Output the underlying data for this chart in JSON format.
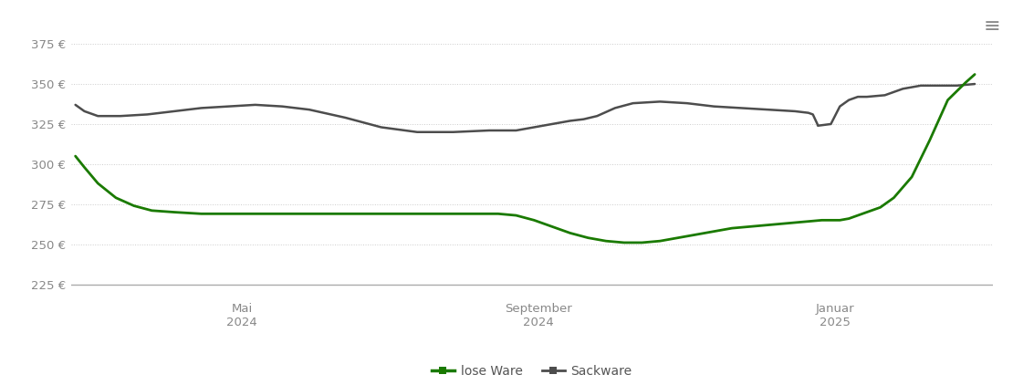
{
  "background_color": "#ffffff",
  "y_ticks": [
    225,
    250,
    275,
    300,
    325,
    350,
    375
  ],
  "y_min": 215,
  "y_max": 388,
  "x_tick_labels": [
    "Mai\n2024",
    "September\n2024",
    "Januar\n2025"
  ],
  "x_tick_positions": [
    0.185,
    0.515,
    0.845
  ],
  "lose_ware_color": "#1a7a00",
  "sackware_color": "#4d4d4d",
  "grid_color": "#cccccc",
  "axis_color": "#aaaaaa",
  "legend_lose_label": "lose Ware",
  "legend_sack_label": "Sackware",
  "lose_ware_x": [
    0.0,
    0.01,
    0.025,
    0.045,
    0.065,
    0.085,
    0.11,
    0.14,
    0.17,
    0.2,
    0.23,
    0.26,
    0.29,
    0.32,
    0.36,
    0.4,
    0.44,
    0.47,
    0.49,
    0.51,
    0.53,
    0.55,
    0.57,
    0.59,
    0.61,
    0.63,
    0.65,
    0.67,
    0.69,
    0.71,
    0.73,
    0.75,
    0.77,
    0.79,
    0.81,
    0.83,
    0.84,
    0.85,
    0.86,
    0.87,
    0.88,
    0.895,
    0.91,
    0.93,
    0.95,
    0.97,
    0.99,
    1.0
  ],
  "lose_ware_y": [
    305,
    298,
    288,
    279,
    274,
    271,
    270,
    269,
    269,
    269,
    269,
    269,
    269,
    269,
    269,
    269,
    269,
    269,
    268,
    265,
    261,
    257,
    254,
    252,
    251,
    251,
    252,
    254,
    256,
    258,
    260,
    261,
    262,
    263,
    264,
    265,
    265,
    265,
    266,
    268,
    270,
    273,
    279,
    292,
    315,
    340,
    351,
    356
  ],
  "sackware_x": [
    0.0,
    0.01,
    0.025,
    0.05,
    0.08,
    0.11,
    0.14,
    0.17,
    0.2,
    0.23,
    0.26,
    0.3,
    0.34,
    0.38,
    0.42,
    0.46,
    0.49,
    0.51,
    0.53,
    0.55,
    0.565,
    0.58,
    0.6,
    0.62,
    0.65,
    0.68,
    0.71,
    0.74,
    0.77,
    0.8,
    0.815,
    0.82,
    0.825,
    0.8255,
    0.826,
    0.84,
    0.85,
    0.855,
    0.86,
    0.865,
    0.87,
    0.88,
    0.9,
    0.92,
    0.94,
    0.96,
    0.98,
    1.0
  ],
  "sackware_y": [
    337,
    333,
    330,
    330,
    331,
    333,
    335,
    336,
    337,
    336,
    334,
    329,
    323,
    320,
    320,
    321,
    321,
    323,
    325,
    327,
    328,
    330,
    335,
    338,
    339,
    338,
    336,
    335,
    334,
    333,
    332,
    331,
    325,
    324,
    324,
    325,
    336,
    338,
    340,
    341,
    342,
    342,
    343,
    347,
    349,
    349,
    349,
    350
  ]
}
